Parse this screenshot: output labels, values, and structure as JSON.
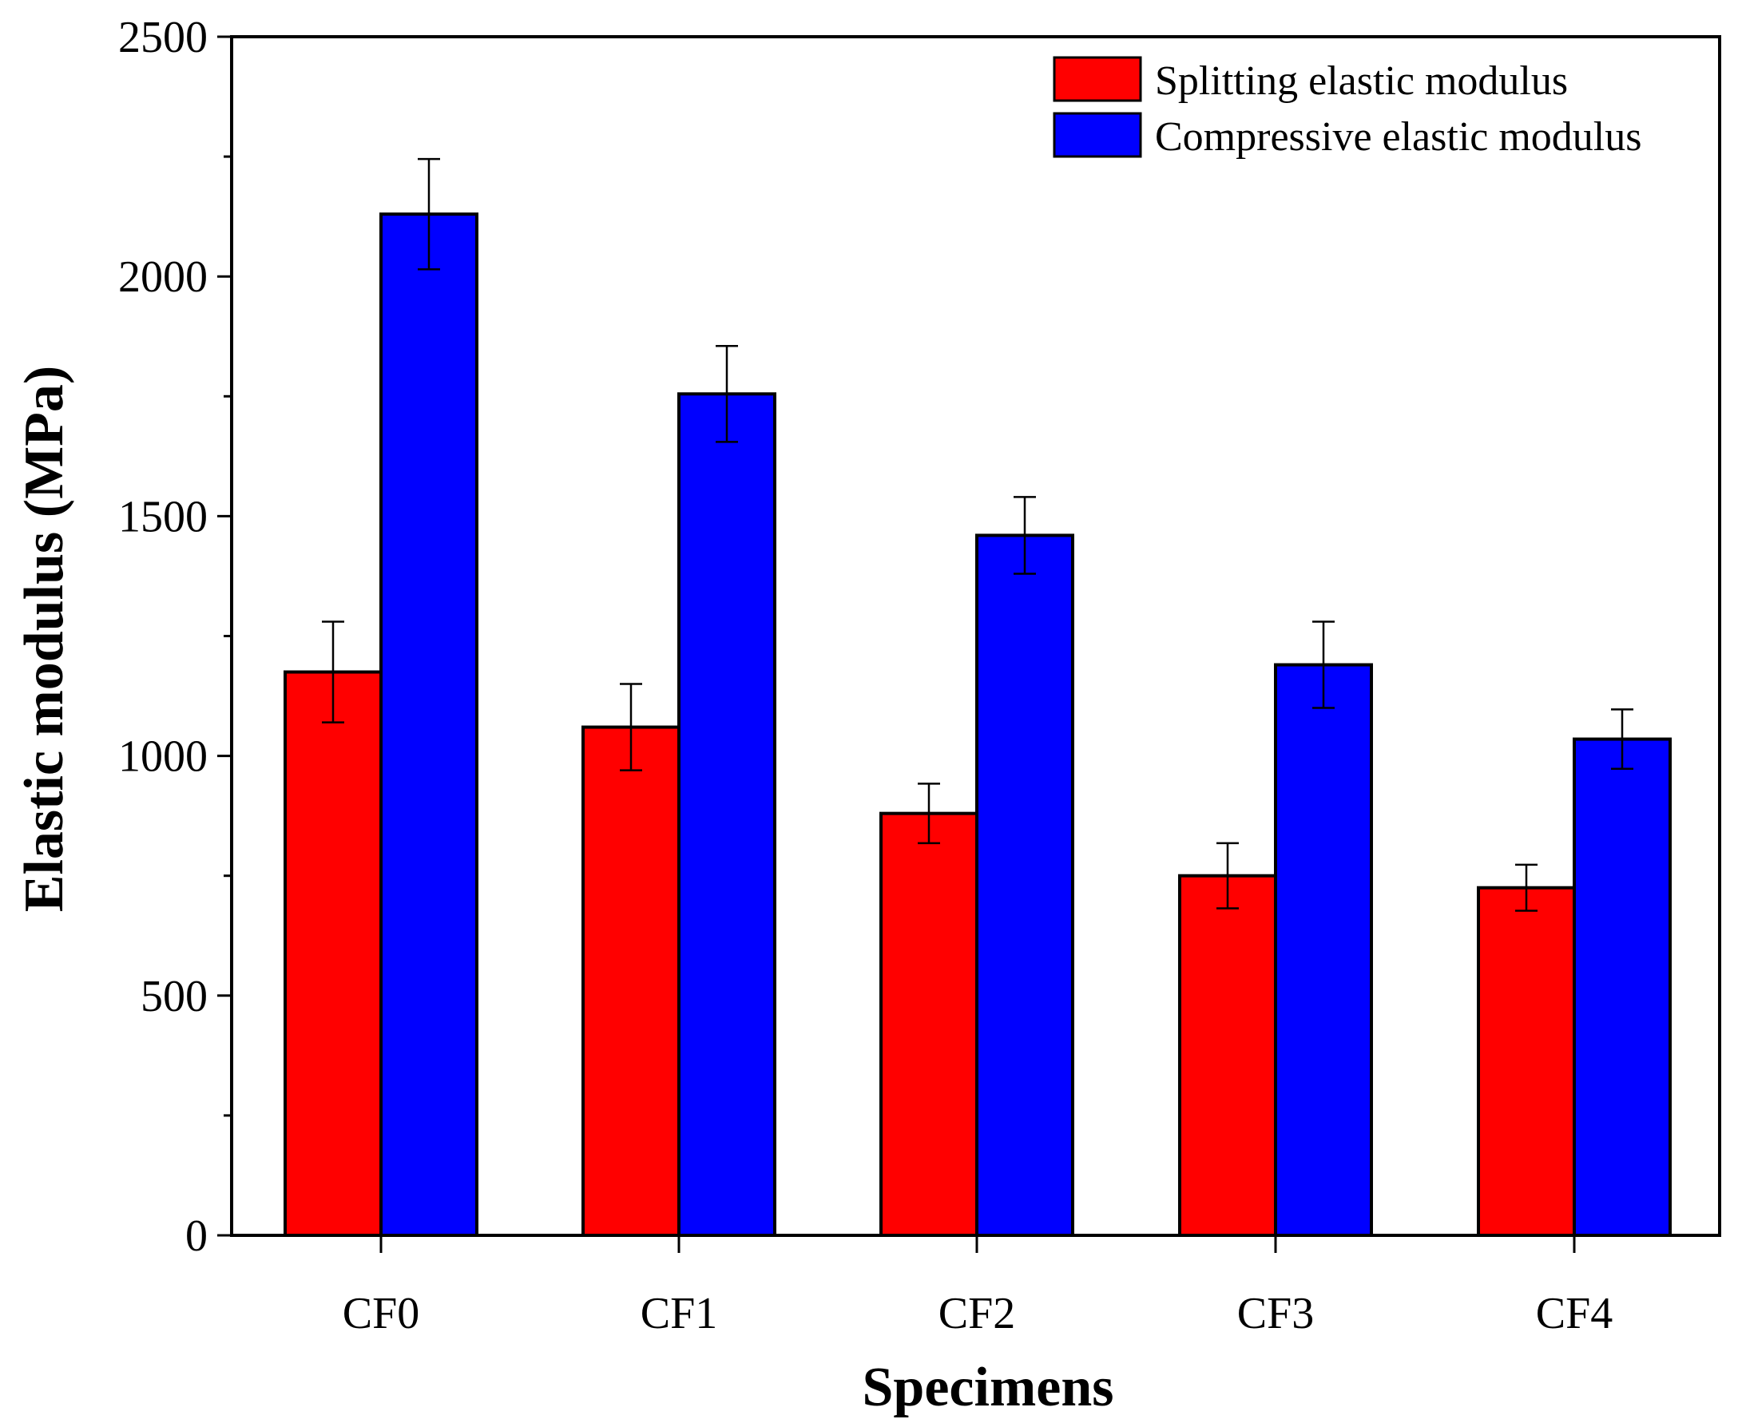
{
  "chart_data": {
    "type": "bar",
    "title": "",
    "xlabel": "Specimens",
    "ylabel": "Elastic modulus (MPa)",
    "ylim": [
      0,
      2500
    ],
    "yticks": [
      0,
      500,
      1000,
      1500,
      2000,
      2500
    ],
    "categories": [
      "CF0",
      "CF1",
      "CF2",
      "CF3",
      "CF4"
    ],
    "legend_position": "top-right",
    "series": [
      {
        "name": "Splitting elastic modulus",
        "color": "#ff0000",
        "values": [
          1175,
          1060,
          880,
          750,
          725
        ],
        "error": [
          105,
          90,
          62,
          68,
          48
        ]
      },
      {
        "name": "Compressive elastic modulus",
        "color": "#0000ff",
        "values": [
          2130,
          1755,
          1460,
          1190,
          1035
        ],
        "error": [
          115,
          100,
          80,
          90,
          62
        ]
      }
    ]
  }
}
